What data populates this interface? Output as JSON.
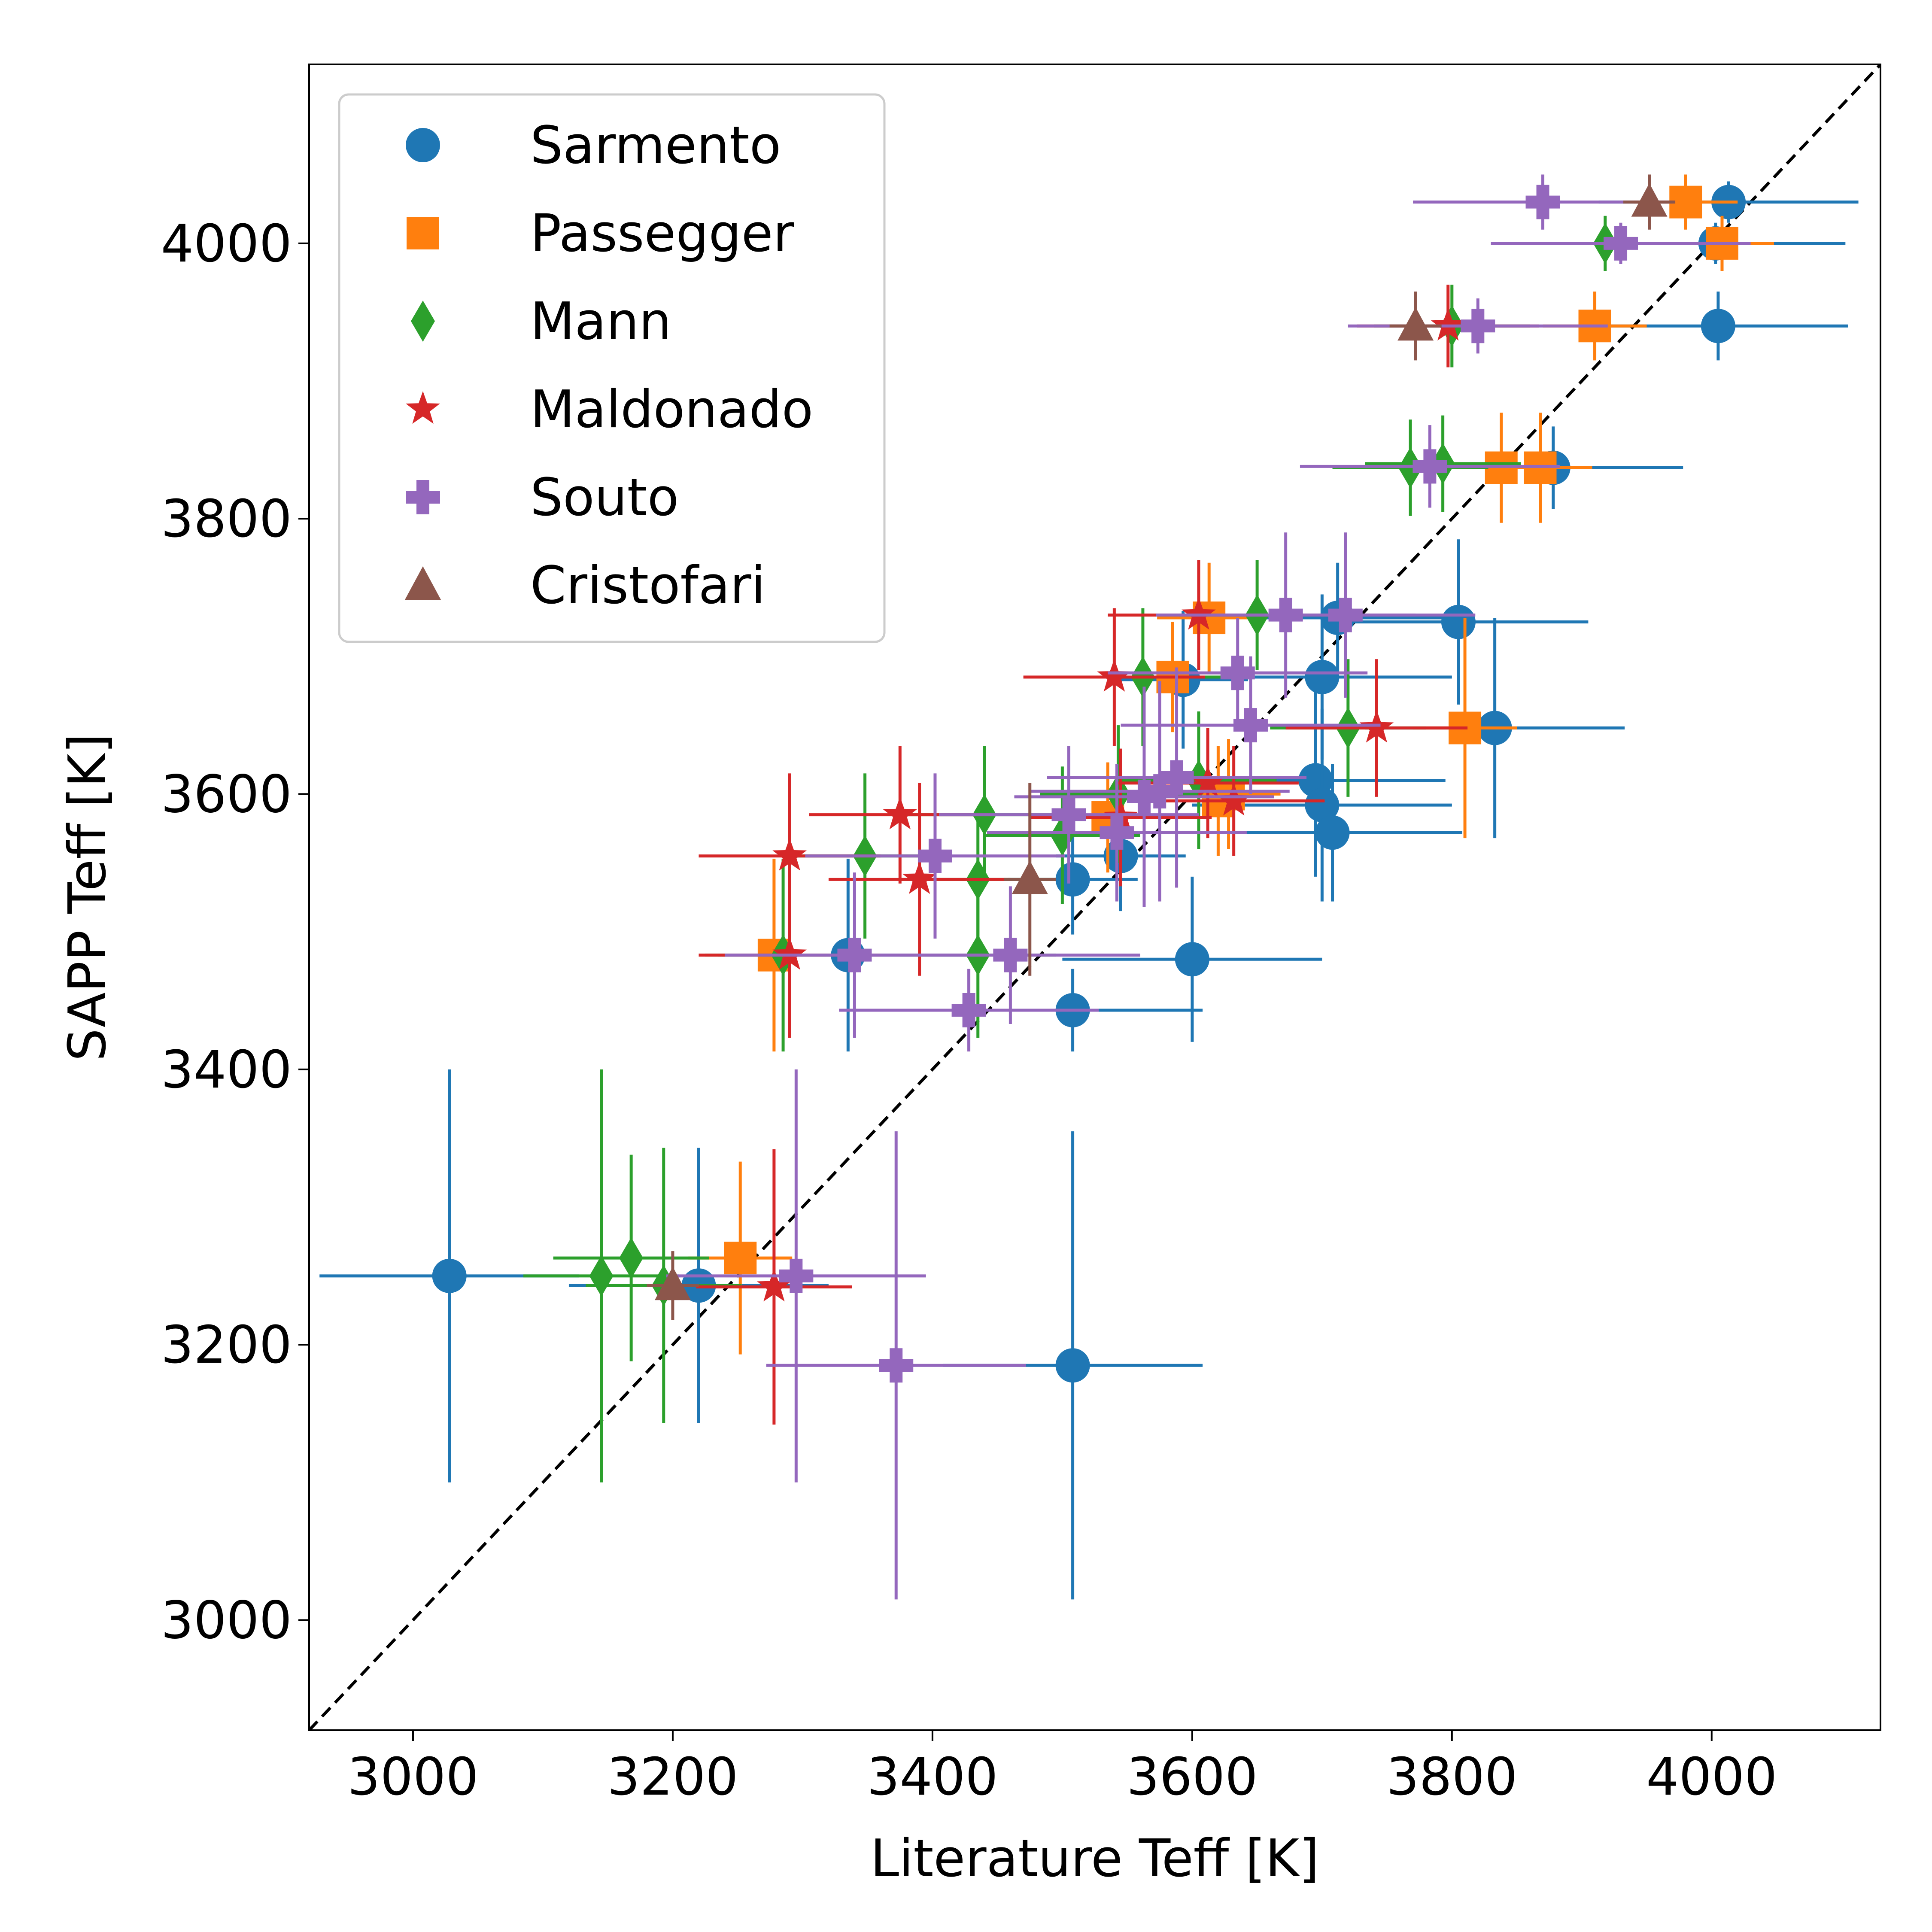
{
  "chart_data": {
    "type": "scatter",
    "xlabel": "Literature Teff [K]",
    "ylabel": "SAPP Teff [K]",
    "xlim": [
      2920,
      4130
    ],
    "ylim": [
      2920,
      4130
    ],
    "xticks": [
      3000,
      3200,
      3400,
      3600,
      3800,
      4000
    ],
    "yticks": [
      3000,
      3200,
      3400,
      3600,
      3800,
      4000
    ],
    "xtick_labels": [
      "3000",
      "3200",
      "3400",
      "3600",
      "3800",
      "4000"
    ],
    "ytick_labels": [
      "3000",
      "3200",
      "3400",
      "3600",
      "3800",
      "4000"
    ],
    "grid": false,
    "legend_position": "top-left",
    "reference_line": {
      "style": "dashed",
      "color": "#000000",
      "from": [
        2920,
        2920
      ],
      "to": [
        4130,
        4130
      ]
    },
    "series": [
      {
        "name": "Sarmento",
        "marker": "circle",
        "color": "#1f77b4",
        "points": [
          {
            "x": 3028,
            "y": 3250,
            "xerr": 100,
            "yerr": 150
          },
          {
            "x": 3220,
            "y": 3243,
            "xerr": 100,
            "yerr": 100
          },
          {
            "x": 3508,
            "y": 3185,
            "xerr": 100,
            "yerr": 170
          },
          {
            "x": 3335,
            "y": 3483,
            "xerr": 100,
            "yerr": 70
          },
          {
            "x": 3508,
            "y": 3443,
            "xerr": 100,
            "yerr": 30
          },
          {
            "x": 3600,
            "y": 3480,
            "xerr": 100,
            "yerr": 60
          },
          {
            "x": 3508,
            "y": 3538,
            "xerr": 50,
            "yerr": 40
          },
          {
            "x": 3545,
            "y": 3555,
            "xerr": 50,
            "yerr": 40
          },
          {
            "x": 3593,
            "y": 3683,
            "xerr": 50,
            "yerr": 50
          },
          {
            "x": 3695,
            "y": 3610,
            "xerr": 100,
            "yerr": 70
          },
          {
            "x": 3700,
            "y": 3592,
            "xerr": 100,
            "yerr": 70
          },
          {
            "x": 3708,
            "y": 3572,
            "xerr": 100,
            "yerr": 50
          },
          {
            "x": 3700,
            "y": 3685,
            "xerr": 100,
            "yerr": 60
          },
          {
            "x": 3712,
            "y": 3728,
            "xerr": 100,
            "yerr": 40
          },
          {
            "x": 3805,
            "y": 3725,
            "xerr": 100,
            "yerr": 60
          },
          {
            "x": 3833,
            "y": 3648,
            "xerr": 100,
            "yerr": 80
          },
          {
            "x": 3878,
            "y": 3837,
            "xerr": 100,
            "yerr": 30
          },
          {
            "x": 4005,
            "y": 3940,
            "xerr": 100,
            "yerr": 25
          },
          {
            "x": 4003,
            "y": 4000,
            "xerr": 100,
            "yerr": 15
          },
          {
            "x": 4013,
            "y": 4030,
            "xerr": 100,
            "yerr": 15
          }
        ]
      },
      {
        "name": "Passegger",
        "marker": "square",
        "color": "#ff7f0e",
        "points": [
          {
            "x": 3252,
            "y": 3263,
            "xerr": 40,
            "yerr": 70
          },
          {
            "x": 3278,
            "y": 3483,
            "xerr": 40,
            "yerr": 70
          },
          {
            "x": 3535,
            "y": 3583,
            "xerr": 40,
            "yerr": 40
          },
          {
            "x": 3585,
            "y": 3685,
            "xerr": 40,
            "yerr": 40
          },
          {
            "x": 3613,
            "y": 3728,
            "xerr": 40,
            "yerr": 40
          },
          {
            "x": 3620,
            "y": 3595,
            "xerr": 40,
            "yerr": 40
          },
          {
            "x": 3628,
            "y": 3600,
            "xerr": 40,
            "yerr": 40
          },
          {
            "x": 3810,
            "y": 3648,
            "xerr": 40,
            "yerr": 80
          },
          {
            "x": 3838,
            "y": 3837,
            "xerr": 40,
            "yerr": 40
          },
          {
            "x": 3868,
            "y": 3837,
            "xerr": 40,
            "yerr": 40
          },
          {
            "x": 3910,
            "y": 3940,
            "xerr": 40,
            "yerr": 25
          },
          {
            "x": 3980,
            "y": 4030,
            "xerr": 40,
            "yerr": 20
          },
          {
            "x": 4008,
            "y": 4000,
            "xerr": 40,
            "yerr": 20
          }
        ]
      },
      {
        "name": "Mann",
        "marker": "diamond",
        "color": "#2ca02c",
        "points": [
          {
            "x": 3145,
            "y": 3250,
            "xerr": 60,
            "yerr": 150
          },
          {
            "x": 3168,
            "y": 3263,
            "xerr": 60,
            "yerr": 75
          },
          {
            "x": 3193,
            "y": 3243,
            "xerr": 60,
            "yerr": 100
          },
          {
            "x": 3285,
            "y": 3483,
            "xerr": 60,
            "yerr": 70
          },
          {
            "x": 3348,
            "y": 3555,
            "xerr": 60,
            "yerr": 60
          },
          {
            "x": 3440,
            "y": 3585,
            "xerr": 60,
            "yerr": 50
          },
          {
            "x": 3435,
            "y": 3538,
            "xerr": 60,
            "yerr": 50
          },
          {
            "x": 3435,
            "y": 3483,
            "xerr": 60,
            "yerr": 60
          },
          {
            "x": 3500,
            "y": 3570,
            "xerr": 60,
            "yerr": 50
          },
          {
            "x": 3543,
            "y": 3600,
            "xerr": 60,
            "yerr": 50
          },
          {
            "x": 3562,
            "y": 3685,
            "xerr": 60,
            "yerr": 50
          },
          {
            "x": 3605,
            "y": 3610,
            "xerr": 60,
            "yerr": 50
          },
          {
            "x": 3650,
            "y": 3730,
            "xerr": 60,
            "yerr": 40
          },
          {
            "x": 3720,
            "y": 3648,
            "xerr": 60,
            "yerr": 50
          },
          {
            "x": 3768,
            "y": 3837,
            "xerr": 60,
            "yerr": 35
          },
          {
            "x": 3793,
            "y": 3840,
            "xerr": 60,
            "yerr": 35
          },
          {
            "x": 3800,
            "y": 3940,
            "xerr": 60,
            "yerr": 30
          },
          {
            "x": 3918,
            "y": 4000,
            "xerr": 60,
            "yerr": 20
          }
        ]
      },
      {
        "name": "Maldonado",
        "marker": "star",
        "color": "#d62728",
        "points": [
          {
            "x": 3278,
            "y": 3242,
            "xerr": 60,
            "yerr": 100
          },
          {
            "x": 3290,
            "y": 3483,
            "xerr": 70,
            "yerr": 60
          },
          {
            "x": 3290,
            "y": 3555,
            "xerr": 70,
            "yerr": 60
          },
          {
            "x": 3375,
            "y": 3585,
            "xerr": 70,
            "yerr": 50
          },
          {
            "x": 3390,
            "y": 3538,
            "xerr": 70,
            "yerr": 70
          },
          {
            "x": 3540,
            "y": 3685,
            "xerr": 70,
            "yerr": 50
          },
          {
            "x": 3545,
            "y": 3583,
            "xerr": 70,
            "yerr": 50
          },
          {
            "x": 3605,
            "y": 3730,
            "xerr": 70,
            "yerr": 40
          },
          {
            "x": 3612,
            "y": 3608,
            "xerr": 70,
            "yerr": 40
          },
          {
            "x": 3632,
            "y": 3595,
            "xerr": 70,
            "yerr": 40
          },
          {
            "x": 3742,
            "y": 3648,
            "xerr": 70,
            "yerr": 50
          },
          {
            "x": 3797,
            "y": 3940,
            "xerr": 70,
            "yerr": 30
          }
        ]
      },
      {
        "name": "Souto",
        "marker": "plus",
        "color": "#9467bd",
        "points": [
          {
            "x": 3295,
            "y": 3250,
            "xerr": 100,
            "yerr": 150
          },
          {
            "x": 3372,
            "y": 3185,
            "xerr": 100,
            "yerr": 170
          },
          {
            "x": 3340,
            "y": 3483,
            "xerr": 100,
            "yerr": 60
          },
          {
            "x": 3428,
            "y": 3443,
            "xerr": 100,
            "yerr": 30
          },
          {
            "x": 3460,
            "y": 3483,
            "xerr": 100,
            "yerr": 50
          },
          {
            "x": 3402,
            "y": 3555,
            "xerr": 100,
            "yerr": 60
          },
          {
            "x": 3505,
            "y": 3585,
            "xerr": 100,
            "yerr": 50
          },
          {
            "x": 3542,
            "y": 3572,
            "xerr": 100,
            "yerr": 50
          },
          {
            "x": 3563,
            "y": 3598,
            "xerr": 100,
            "yerr": 80
          },
          {
            "x": 3575,
            "y": 3602,
            "xerr": 100,
            "yerr": 80
          },
          {
            "x": 3588,
            "y": 3612,
            "xerr": 100,
            "yerr": 80
          },
          {
            "x": 3635,
            "y": 3688,
            "xerr": 100,
            "yerr": 40
          },
          {
            "x": 3645,
            "y": 3650,
            "xerr": 100,
            "yerr": 50
          },
          {
            "x": 3672,
            "y": 3730,
            "xerr": 100,
            "yerr": 60
          },
          {
            "x": 3718,
            "y": 3730,
            "xerr": 100,
            "yerr": 60
          },
          {
            "x": 3783,
            "y": 3838,
            "xerr": 100,
            "yerr": 30
          },
          {
            "x": 3820,
            "y": 3940,
            "xerr": 100,
            "yerr": 20
          },
          {
            "x": 3870,
            "y": 4030,
            "xerr": 100,
            "yerr": 20
          },
          {
            "x": 3930,
            "y": 4000,
            "xerr": 100,
            "yerr": 15
          }
        ]
      },
      {
        "name": "Cristofari",
        "marker": "triangle",
        "color": "#8c564b",
        "points": [
          {
            "x": 3200,
            "y": 3243,
            "xerr": 20,
            "yerr": 25
          },
          {
            "x": 3475,
            "y": 3538,
            "xerr": 20,
            "yerr": 70
          },
          {
            "x": 3772,
            "y": 3940,
            "xerr": 20,
            "yerr": 25
          },
          {
            "x": 3952,
            "y": 4030,
            "xerr": 20,
            "yerr": 20
          }
        ]
      }
    ]
  }
}
